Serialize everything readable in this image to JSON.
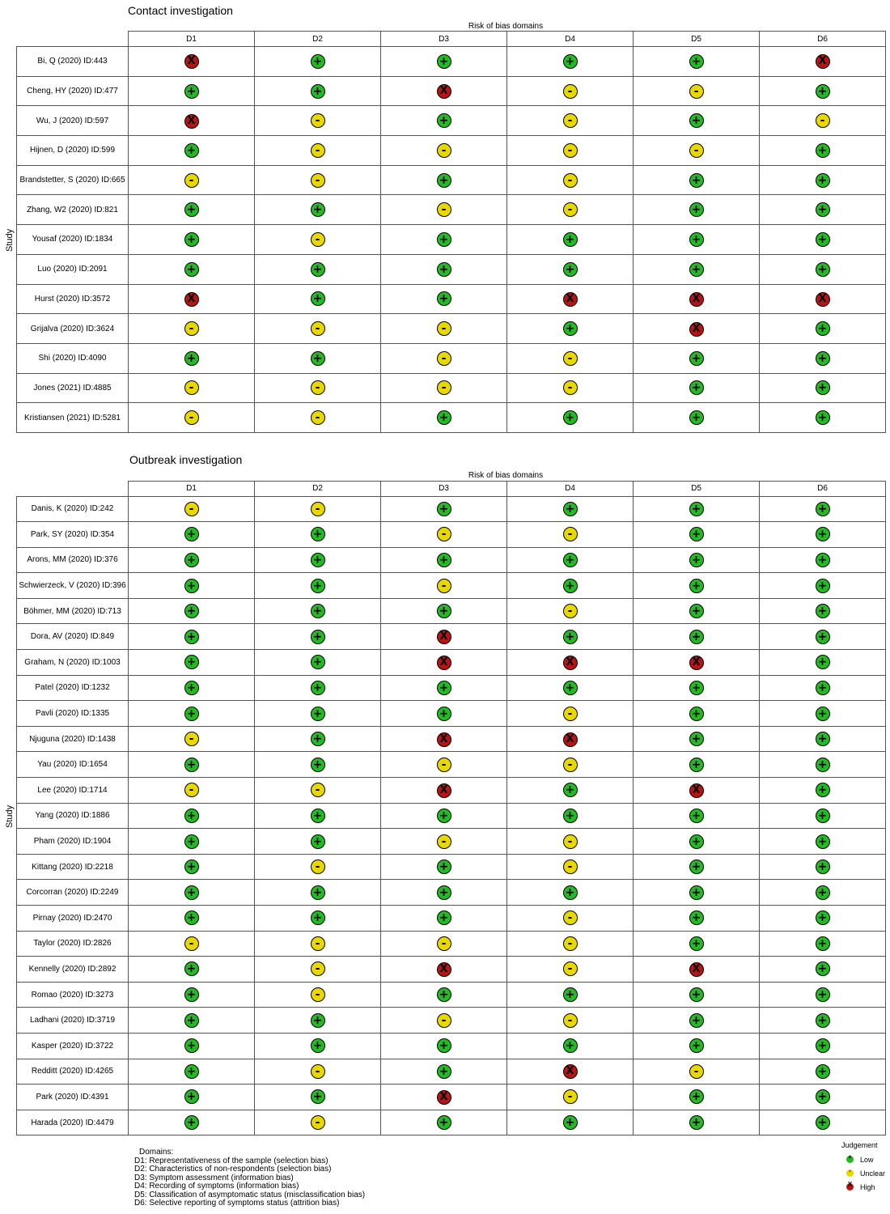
{
  "chart_data": [
    {
      "type": "table",
      "title": "Contact investigation",
      "domains_caption": "Risk of bias domains",
      "ylabel": "Study",
      "columns": [
        "D1",
        "D2",
        "D3",
        "D4",
        "D5",
        "D6"
      ],
      "rows": [
        {
          "study": "Bi, Q (2020) ID:443",
          "judgements": [
            "high",
            "low",
            "low",
            "low",
            "low",
            "high"
          ]
        },
        {
          "study": "Cheng, HY (2020) ID:477",
          "judgements": [
            "low",
            "low",
            "high",
            "unclear",
            "unclear",
            "low"
          ]
        },
        {
          "study": "Wu, J (2020) ID:597",
          "judgements": [
            "high",
            "unclear",
            "low",
            "unclear",
            "low",
            "unclear"
          ]
        },
        {
          "study": "Hijnen, D (2020) ID:599",
          "judgements": [
            "low",
            "unclear",
            "unclear",
            "unclear",
            "unclear",
            "low"
          ]
        },
        {
          "study": "Brandstetter, S (2020) ID:665",
          "judgements": [
            "unclear",
            "unclear",
            "low",
            "unclear",
            "low",
            "low"
          ]
        },
        {
          "study": "Zhang, W2 (2020) ID:821",
          "judgements": [
            "low",
            "low",
            "unclear",
            "unclear",
            "low",
            "low"
          ]
        },
        {
          "study": "Yousaf (2020) ID:1834",
          "judgements": [
            "low",
            "unclear",
            "low",
            "low",
            "low",
            "low"
          ]
        },
        {
          "study": "Luo (2020) ID:2091",
          "judgements": [
            "low",
            "low",
            "low",
            "low",
            "low",
            "low"
          ]
        },
        {
          "study": "Hurst (2020) ID:3572",
          "judgements": [
            "high",
            "low",
            "low",
            "high",
            "high",
            "high"
          ]
        },
        {
          "study": "Grijalva (2020) ID:3624",
          "judgements": [
            "unclear",
            "unclear",
            "unclear",
            "low",
            "high",
            "low"
          ]
        },
        {
          "study": "Shi (2020) ID:4090",
          "judgements": [
            "low",
            "low",
            "unclear",
            "unclear",
            "low",
            "low"
          ]
        },
        {
          "study": "Jones (2021) ID:4885",
          "judgements": [
            "unclear",
            "unclear",
            "unclear",
            "unclear",
            "low",
            "low"
          ]
        },
        {
          "study": "Kristiansen (2021) ID:5281",
          "judgements": [
            "unclear",
            "unclear",
            "low",
            "low",
            "low",
            "low"
          ]
        }
      ]
    },
    {
      "type": "table",
      "title": "Outbreak investigation",
      "domains_caption": "Risk of bias domains",
      "ylabel": "Study",
      "columns": [
        "D1",
        "D2",
        "D3",
        "D4",
        "D5",
        "D6"
      ],
      "rows": [
        {
          "study": "Danis, K (2020) ID:242",
          "judgements": [
            "unclear",
            "unclear",
            "low",
            "low",
            "low",
            "low"
          ]
        },
        {
          "study": "Park, SY (2020) ID:354",
          "judgements": [
            "low",
            "low",
            "unclear",
            "unclear",
            "low",
            "low"
          ]
        },
        {
          "study": "Arons, MM (2020) ID:376",
          "judgements": [
            "low",
            "low",
            "low",
            "low",
            "low",
            "low"
          ]
        },
        {
          "study": "Schwierzeck, V (2020) ID:396",
          "judgements": [
            "low",
            "low",
            "unclear",
            "low",
            "low",
            "low"
          ]
        },
        {
          "study": "Böhmer, MM (2020) ID:713",
          "judgements": [
            "low",
            "low",
            "low",
            "unclear",
            "low",
            "low"
          ]
        },
        {
          "study": "Dora, AV (2020) ID:849",
          "judgements": [
            "low",
            "low",
            "high",
            "low",
            "low",
            "low"
          ]
        },
        {
          "study": "Graham, N (2020) ID:1003",
          "judgements": [
            "low",
            "low",
            "high",
            "high",
            "high",
            "low"
          ]
        },
        {
          "study": "Patel (2020) ID:1232",
          "judgements": [
            "low",
            "low",
            "low",
            "low",
            "low",
            "low"
          ]
        },
        {
          "study": "Pavli (2020) ID:1335",
          "judgements": [
            "low",
            "low",
            "low",
            "unclear",
            "low",
            "low"
          ]
        },
        {
          "study": "Njuguna (2020) ID:1438",
          "judgements": [
            "unclear",
            "low",
            "high",
            "high",
            "low",
            "low"
          ]
        },
        {
          "study": "Yau (2020) ID:1654",
          "judgements": [
            "low",
            "low",
            "unclear",
            "unclear",
            "low",
            "low"
          ]
        },
        {
          "study": "Lee (2020) ID:1714",
          "judgements": [
            "unclear",
            "unclear",
            "high",
            "low",
            "high",
            "low"
          ]
        },
        {
          "study": "Yang (2020) ID:1886",
          "judgements": [
            "low",
            "low",
            "low",
            "low",
            "low",
            "low"
          ]
        },
        {
          "study": "Pham (2020) ID:1904",
          "judgements": [
            "low",
            "low",
            "unclear",
            "unclear",
            "low",
            "low"
          ]
        },
        {
          "study": "Kittang (2020) ID:2218",
          "judgements": [
            "low",
            "unclear",
            "low",
            "unclear",
            "low",
            "low"
          ]
        },
        {
          "study": "Corcorran (2020) ID:2249",
          "judgements": [
            "low",
            "low",
            "low",
            "low",
            "low",
            "low"
          ]
        },
        {
          "study": "Pirnay (2020) ID:2470",
          "judgements": [
            "low",
            "low",
            "low",
            "unclear",
            "low",
            "low"
          ]
        },
        {
          "study": "Taylor (2020) ID:2826",
          "judgements": [
            "unclear",
            "unclear",
            "unclear",
            "unclear",
            "low",
            "low"
          ]
        },
        {
          "study": "Kennelly (2020) ID:2892",
          "judgements": [
            "low",
            "unclear",
            "high",
            "unclear",
            "high",
            "low"
          ]
        },
        {
          "study": "Romao (2020) ID:3273",
          "judgements": [
            "low",
            "unclear",
            "low",
            "low",
            "low",
            "low"
          ]
        },
        {
          "study": "Ladhani (2020) ID:3719",
          "judgements": [
            "low",
            "low",
            "unclear",
            "unclear",
            "low",
            "low"
          ]
        },
        {
          "study": "Kasper (2020) ID:3722",
          "judgements": [
            "low",
            "low",
            "low",
            "low",
            "low",
            "low"
          ]
        },
        {
          "study": "Redditt (2020) ID:4265",
          "judgements": [
            "low",
            "unclear",
            "low",
            "high",
            "unclear",
            "low"
          ]
        },
        {
          "study": "Park (2020) ID:4391",
          "judgements": [
            "low",
            "low",
            "high",
            "unclear",
            "low",
            "low"
          ]
        },
        {
          "study": "Harada (2020) ID:4479",
          "judgements": [
            "low",
            "unclear",
            "low",
            "low",
            "low",
            "low"
          ]
        }
      ]
    }
  ],
  "judgement_styles": {
    "low": {
      "color": "#22bb22",
      "symbol": "+"
    },
    "unclear": {
      "color": "#e8d800",
      "symbol": "-"
    },
    "high": {
      "color": "#b81414",
      "symbol": "X"
    }
  },
  "legend": {
    "domains_heading": "Domains:",
    "domains": [
      "D1: Representativeness of the sample (selection bias)",
      "D2: Characteristics of non-respondents (selection bias)",
      "D3: Symptom assessment (information bias)",
      "D4: Recording of symptoms (information bias)",
      "D5: Classification of asymptomatic status (misclassification bias)",
      "D6: Selective reporting of symptoms status (attrition bias)"
    ],
    "judgement_heading": "Judgement",
    "judgements": [
      {
        "key": "low",
        "label": "Low"
      },
      {
        "key": "unclear",
        "label": "Unclear"
      },
      {
        "key": "high",
        "label": "High"
      }
    ]
  }
}
